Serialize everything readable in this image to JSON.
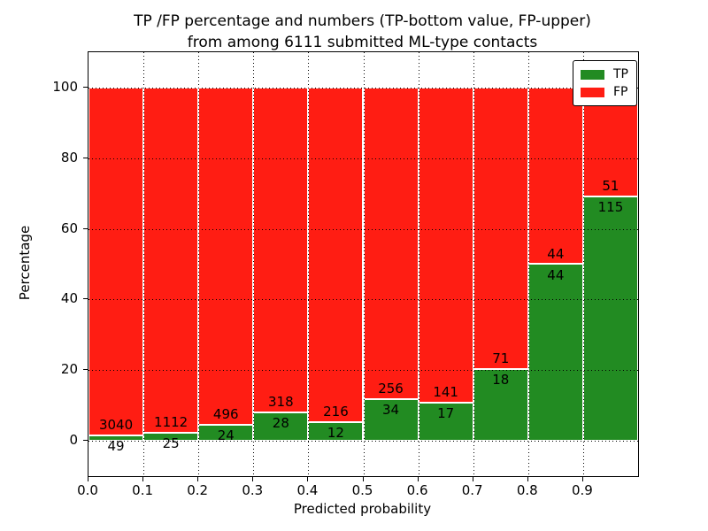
{
  "chart_data": {
    "type": "bar",
    "subtype": "stacked-percentage",
    "title": "TP /FP percentage and numbers (TP-bottom value, FP-upper) from among 6111 submitted ML-type contacts",
    "title_lines": [
      "TP /FP percentage and numbers (TP-bottom value, FP-upper)",
      "from among 6111 submitted ML-type contacts"
    ],
    "xlabel": "Predicted probability",
    "ylabel": "Percentage",
    "total_submitted_contacts": 6111,
    "ylim": [
      -10,
      110
    ],
    "yticks": [
      0,
      20,
      40,
      60,
      80,
      100
    ],
    "xticks": [
      "0.0",
      "0.1",
      "0.2",
      "0.3",
      "0.4",
      "0.5",
      "0.6",
      "0.7",
      "0.8",
      "0.9"
    ],
    "x_bin_width": 0.1,
    "grid": true,
    "legend": {
      "position": "upper right",
      "entries": [
        {
          "label": "TP",
          "color": "#228B22"
        },
        {
          "label": "FP",
          "color": "#FF1D13"
        }
      ]
    },
    "colors": {
      "tp": "#228B22",
      "fp": "#FF1D13",
      "bar_edge": "#FFFFFF",
      "grid": "#000000"
    },
    "bars": [
      {
        "bin_start": 0.0,
        "tp_count": 49,
        "fp_count": 3040,
        "tp_pct": 1.59,
        "fp_pct": 98.41
      },
      {
        "bin_start": 0.1,
        "tp_count": 25,
        "fp_count": 1112,
        "tp_pct": 2.2,
        "fp_pct": 97.8
      },
      {
        "bin_start": 0.2,
        "tp_count": 24,
        "fp_count": 496,
        "tp_pct": 4.62,
        "fp_pct": 95.38
      },
      {
        "bin_start": 0.3,
        "tp_count": 28,
        "fp_count": 318,
        "tp_pct": 8.09,
        "fp_pct": 91.91
      },
      {
        "bin_start": 0.4,
        "tp_count": 12,
        "fp_count": 216,
        "tp_pct": 5.26,
        "fp_pct": 94.74
      },
      {
        "bin_start": 0.5,
        "tp_count": 34,
        "fp_count": 256,
        "tp_pct": 11.72,
        "fp_pct": 88.28
      },
      {
        "bin_start": 0.6,
        "tp_count": 17,
        "fp_count": 141,
        "tp_pct": 10.76,
        "fp_pct": 89.24
      },
      {
        "bin_start": 0.7,
        "tp_count": 18,
        "fp_count": 71,
        "tp_pct": 20.22,
        "fp_pct": 79.78
      },
      {
        "bin_start": 0.8,
        "tp_count": 44,
        "fp_count": 44,
        "tp_pct": 50.0,
        "fp_pct": 50.0
      },
      {
        "bin_start": 0.9,
        "tp_count": 115,
        "fp_count": 51,
        "tp_pct": 69.28,
        "fp_pct": 30.72
      }
    ]
  }
}
